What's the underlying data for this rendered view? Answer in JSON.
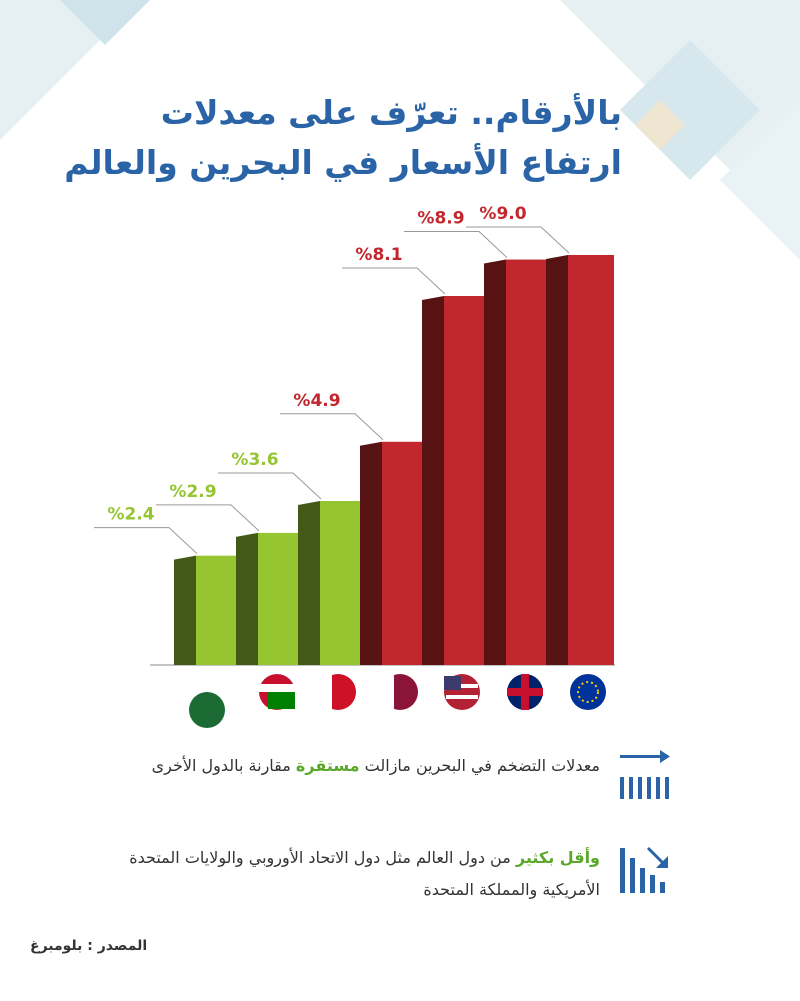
{
  "header": {
    "title_line1": "بالأرقام.. تعرّف على معدلات",
    "title_line2": "ارتفاع الأسعار في البحرين والعالم"
  },
  "chart_data": {
    "type": "bar",
    "categories": [
      null,
      null,
      null,
      null,
      null,
      null,
      null
    ],
    "values": [
      2.4,
      2.9,
      3.6,
      4.9,
      8.1,
      8.9,
      9.0
    ],
    "value_labels": [
      "%2.4",
      "%2.9",
      "%3.6",
      "%4.9",
      "%8.1",
      "%8.9",
      "%9.0"
    ],
    "colors": [
      "#95c531",
      "#95c531",
      "#95c531",
      "#c1272d",
      "#c1272d",
      "#c1272d",
      "#c1272d"
    ]
  },
  "notes": [
    {
      "lead": "معدلات التضخم في البحرين مازالت",
      "highlight": "مستقرة",
      "rest": "مقارنة بالدول الأخرى"
    },
    {
      "highlight": "وأقل بكثير",
      "rest": "من دول العالم مثل دول الاتحاد الأوروبي والولايات المتحدة الأمريكية والمملكة المتحدة"
    }
  ],
  "source": "المصدر : بلومبرغ"
}
